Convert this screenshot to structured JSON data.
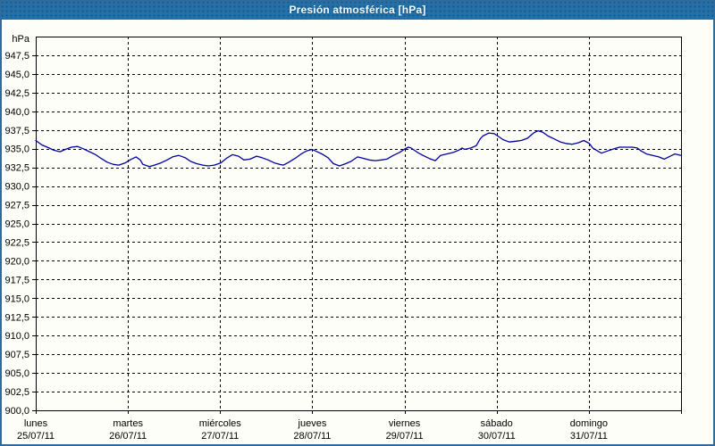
{
  "window": {
    "title": "Presión atmosférica [hPa]",
    "colors": {
      "titlebar_bg": "#2470a7",
      "titlebar_text": "#f2fbff",
      "frame_border": "#2f6b9d",
      "background": "#fcfef7",
      "axis": "#000000",
      "grid": "#000000",
      "label": "#000000",
      "line": "#0000a0"
    }
  },
  "chart_data": {
    "type": "line",
    "title": "Presión atmosférica [hPa]",
    "legend": "none",
    "grid": "dashed",
    "y_axis": {
      "unit": "hPa",
      "min": 900.0,
      "max": 950.0,
      "tick_step": 2.5,
      "first_label": 900.0,
      "last_label": 947.5,
      "decimal_separator": ","
    },
    "x_axis": {
      "hours_total": 168,
      "days": [
        {
          "name": "lunes",
          "date": "25/07/11"
        },
        {
          "name": "martes",
          "date": "26/07/11"
        },
        {
          "name": "miércoles",
          "date": "27/07/11"
        },
        {
          "name": "jueves",
          "date": "28/07/11"
        },
        {
          "name": "viernes",
          "date": "29/07/11"
        },
        {
          "name": "sábado",
          "date": "30/07/11"
        },
        {
          "name": "domingo",
          "date": "31/07/11"
        }
      ]
    },
    "series": [
      {
        "name": "Presión atmosférica",
        "color": "#0000a0",
        "points": [
          [
            0.0,
            936.1
          ],
          [
            1.6,
            935.5
          ],
          [
            3.0,
            935.2
          ],
          [
            4.7,
            934.8
          ],
          [
            6.3,
            934.6
          ],
          [
            7.7,
            934.9
          ],
          [
            9.3,
            935.2
          ],
          [
            10.9,
            935.3
          ],
          [
            12.3,
            935.0
          ],
          [
            14.0,
            934.6
          ],
          [
            15.6,
            934.2
          ],
          [
            17.0,
            933.7
          ],
          [
            18.6,
            933.2
          ],
          [
            20.2,
            932.9
          ],
          [
            21.6,
            932.8
          ],
          [
            23.3,
            933.1
          ],
          [
            24.9,
            933.6
          ],
          [
            26.1,
            933.9
          ],
          [
            27.2,
            933.5
          ],
          [
            27.9,
            932.9
          ],
          [
            29.6,
            932.6
          ],
          [
            30.9,
            932.8
          ],
          [
            32.6,
            933.1
          ],
          [
            34.2,
            933.5
          ],
          [
            35.6,
            933.9
          ],
          [
            37.2,
            934.1
          ],
          [
            38.9,
            933.8
          ],
          [
            40.3,
            933.3
          ],
          [
            41.9,
            933.0
          ],
          [
            43.5,
            932.8
          ],
          [
            44.9,
            932.7
          ],
          [
            46.5,
            932.8
          ],
          [
            48.2,
            933.1
          ],
          [
            49.6,
            933.7
          ],
          [
            51.2,
            934.2
          ],
          [
            52.8,
            934.0
          ],
          [
            54.2,
            933.5
          ],
          [
            55.8,
            933.6
          ],
          [
            57.5,
            934.0
          ],
          [
            58.9,
            933.8
          ],
          [
            60.5,
            933.5
          ],
          [
            62.1,
            933.1
          ],
          [
            63.5,
            932.9
          ],
          [
            64.5,
            932.8
          ],
          [
            65.9,
            933.2
          ],
          [
            67.5,
            933.7
          ],
          [
            69.1,
            934.3
          ],
          [
            70.5,
            934.7
          ],
          [
            71.9,
            934.9
          ],
          [
            72.8,
            934.7
          ],
          [
            74.5,
            934.3
          ],
          [
            76.1,
            933.8
          ],
          [
            77.5,
            933.0
          ],
          [
            79.1,
            932.7
          ],
          [
            80.7,
            933.0
          ],
          [
            82.1,
            933.3
          ],
          [
            83.8,
            933.9
          ],
          [
            85.4,
            933.7
          ],
          [
            86.8,
            933.5
          ],
          [
            88.4,
            933.4
          ],
          [
            90.0,
            933.5
          ],
          [
            91.4,
            933.6
          ],
          [
            93.1,
            934.1
          ],
          [
            94.7,
            934.5
          ],
          [
            95.9,
            934.9
          ],
          [
            97.0,
            935.2
          ],
          [
            97.7,
            935.1
          ],
          [
            99.4,
            934.5
          ],
          [
            100.8,
            934.1
          ],
          [
            102.4,
            933.7
          ],
          [
            104.0,
            933.4
          ],
          [
            105.4,
            934.1
          ],
          [
            107.0,
            934.3
          ],
          [
            108.7,
            934.5
          ],
          [
            110.1,
            934.8
          ],
          [
            111.0,
            935.1
          ],
          [
            111.7,
            934.9
          ],
          [
            113.3,
            935.1
          ],
          [
            114.7,
            935.4
          ],
          [
            115.7,
            936.3
          ],
          [
            116.4,
            936.7
          ],
          [
            118.0,
            937.1
          ],
          [
            119.4,
            937.0
          ],
          [
            120.3,
            936.7
          ],
          [
            121.7,
            936.2
          ],
          [
            123.3,
            935.9
          ],
          [
            125.0,
            936.0
          ],
          [
            126.4,
            936.1
          ],
          [
            128.0,
            936.4
          ],
          [
            129.6,
            937.1
          ],
          [
            130.8,
            937.4
          ],
          [
            132.0,
            937.2
          ],
          [
            133.4,
            936.7
          ],
          [
            135.0,
            936.3
          ],
          [
            136.6,
            935.9
          ],
          [
            138.0,
            935.7
          ],
          [
            139.6,
            935.6
          ],
          [
            141.3,
            935.8
          ],
          [
            142.7,
            936.1
          ],
          [
            144.1,
            935.7
          ],
          [
            145.0,
            935.1
          ],
          [
            146.6,
            934.6
          ],
          [
            147.3,
            934.4
          ],
          [
            148.9,
            934.7
          ],
          [
            150.6,
            935.0
          ],
          [
            152.0,
            935.2
          ],
          [
            153.6,
            935.2
          ],
          [
            155.3,
            935.2
          ],
          [
            156.6,
            935.1
          ],
          [
            157.6,
            934.7
          ],
          [
            159.0,
            934.3
          ],
          [
            160.6,
            934.1
          ],
          [
            162.2,
            933.9
          ],
          [
            163.6,
            933.6
          ],
          [
            165.2,
            934.0
          ],
          [
            166.4,
            934.3
          ],
          [
            168.0,
            934.1
          ]
        ]
      }
    ]
  }
}
